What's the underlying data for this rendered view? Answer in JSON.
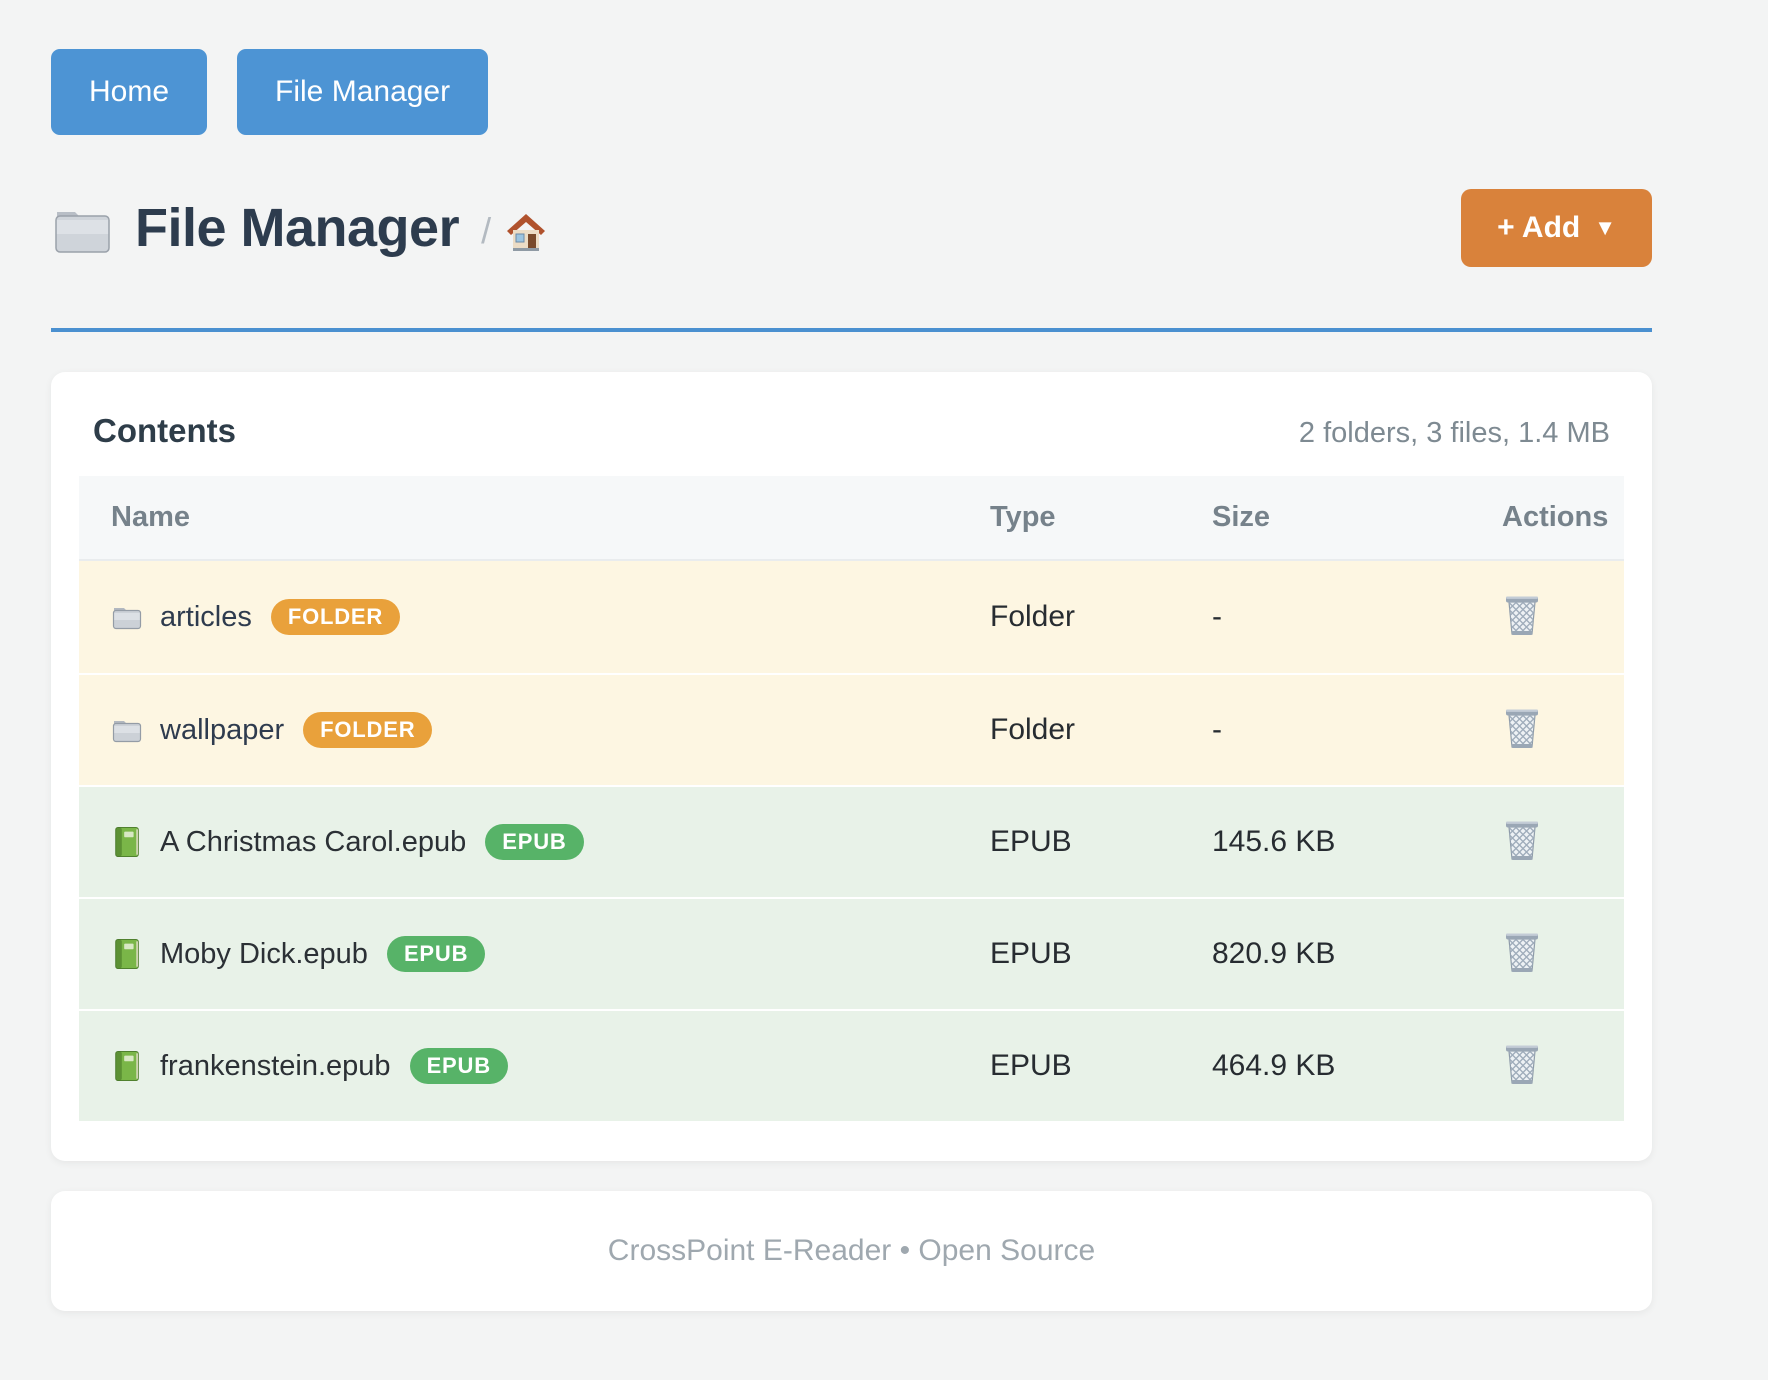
{
  "nav": {
    "home_label": "Home",
    "file_manager_label": "File Manager"
  },
  "header": {
    "title": "File Manager",
    "breadcrumb_separator": "/",
    "add_label": "+ Add",
    "add_caret": "▼"
  },
  "panel": {
    "heading": "Contents",
    "summary": "2 folders, 3 files, 1.4 MB",
    "table": {
      "columns": [
        "Name",
        "Type",
        "Size",
        "Actions"
      ],
      "rows": [
        {
          "name": "articles",
          "kind": "folder",
          "badge": "FOLDER",
          "type": "Folder",
          "size": "-"
        },
        {
          "name": "wallpaper",
          "kind": "folder",
          "badge": "FOLDER",
          "type": "Folder",
          "size": "-"
        },
        {
          "name": "A Christmas Carol.epub",
          "kind": "epub",
          "badge": "EPUB",
          "type": "EPUB",
          "size": "145.6 KB"
        },
        {
          "name": "Moby Dick.epub",
          "kind": "epub",
          "badge": "EPUB",
          "type": "EPUB",
          "size": "820.9 KB"
        },
        {
          "name": "frankenstein.epub",
          "kind": "epub",
          "badge": "EPUB",
          "type": "EPUB",
          "size": "464.9 KB"
        }
      ]
    }
  },
  "footer": {
    "text": "CrossPoint E-Reader • Open Source"
  },
  "icons": {
    "title": "folder-icon",
    "breadcrumb": "home-icon",
    "folder_row": "folder-icon",
    "epub_row": "book-icon",
    "action": "trash-icon"
  },
  "colors": {
    "primary_blue": "#4d94d4",
    "accent_orange": "#d9823b",
    "badge_folder": "#e9a13b",
    "badge_epub": "#57b368",
    "row_folder_bg": "#fdf6e2",
    "row_epub_bg": "#e8f2e8",
    "page_bg": "#f3f4f4"
  }
}
